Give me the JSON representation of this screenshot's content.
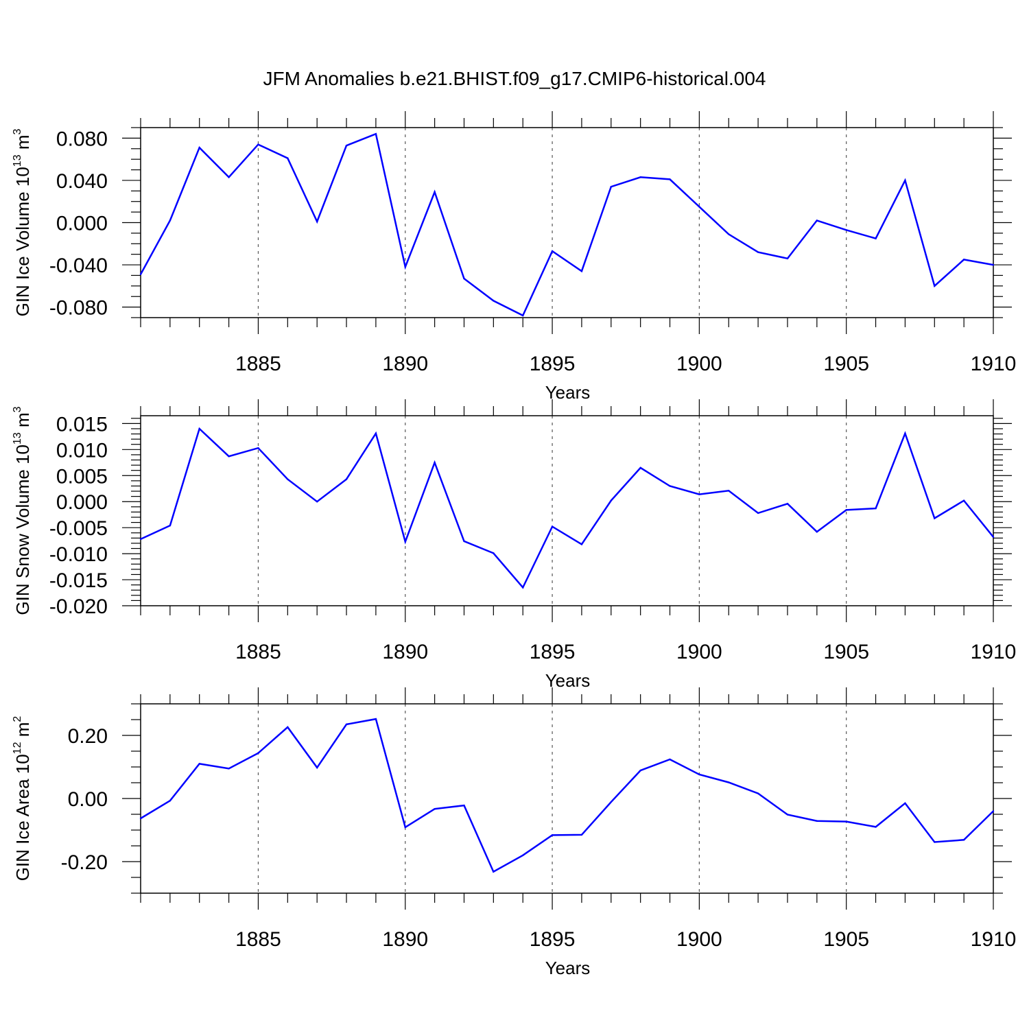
{
  "title": "JFM Anomalies b.e21.BHIST.f09_g17.CMIP6-historical.004",
  "line_color": "#0000ff",
  "chart_data": [
    {
      "type": "line",
      "xlabel": "Years",
      "ylabel": {
        "main": "GIN Ice Volume 10",
        "exp": "13",
        "unit": " m",
        "unit_exp": "3"
      },
      "xlim": [
        1881,
        1910
      ],
      "ylim": [
        -0.09,
        0.09
      ],
      "x_ticks": [
        1885,
        1890,
        1895,
        1900,
        1905,
        1910
      ],
      "x_tick_labels": [
        "1885",
        "1890",
        "1895",
        "1900",
        "1905",
        "1910"
      ],
      "y_ticks": [
        -0.08,
        -0.04,
        0.0,
        0.04,
        0.08
      ],
      "y_tick_labels": [
        "-0.080",
        "-0.040",
        "0.000",
        "0.040",
        "0.080"
      ],
      "y_minor_step": 0.01,
      "grid": "vertical dashed at major x ticks",
      "series": [
        {
          "name": "GIN Ice Volume",
          "x": [
            1881,
            1882,
            1883,
            1884,
            1885,
            1886,
            1887,
            1888,
            1889,
            1890,
            1891,
            1892,
            1893,
            1894,
            1895,
            1896,
            1897,
            1898,
            1899,
            1900,
            1901,
            1902,
            1903,
            1904,
            1905,
            1906,
            1907,
            1908,
            1909,
            1910
          ],
          "values": [
            -0.049,
            0.002,
            0.071,
            0.043,
            0.074,
            0.061,
            0.001,
            0.073,
            0.084,
            -0.042,
            0.029,
            -0.053,
            -0.074,
            -0.088,
            -0.027,
            -0.046,
            0.034,
            0.043,
            0.041,
            0.015,
            -0.011,
            -0.028,
            -0.034,
            0.002,
            -0.007,
            -0.015,
            0.04,
            -0.06,
            -0.035,
            -0.04
          ]
        }
      ]
    },
    {
      "type": "line",
      "xlabel": "Years",
      "ylabel": {
        "main": "GIN Snow Volume 10",
        "exp": "13",
        "unit": " m",
        "unit_exp": "3"
      },
      "xlim": [
        1881,
        1910
      ],
      "ylim": [
        -0.02,
        0.0165
      ],
      "x_ticks": [
        1885,
        1890,
        1895,
        1900,
        1905,
        1910
      ],
      "x_tick_labels": [
        "1885",
        "1890",
        "1895",
        "1900",
        "1905",
        "1910"
      ],
      "y_ticks": [
        -0.02,
        -0.015,
        -0.01,
        -0.005,
        0.0,
        0.005,
        0.01,
        0.015
      ],
      "y_tick_labels": [
        "-0.020",
        "-0.015",
        "-0.010",
        "-0.005",
        "0.000",
        "0.005",
        "0.010",
        "0.015"
      ],
      "y_minor_step": 0.001,
      "grid": "vertical dashed at major x ticks",
      "series": [
        {
          "name": "GIN Snow Volume",
          "x": [
            1881,
            1882,
            1883,
            1884,
            1885,
            1886,
            1887,
            1888,
            1889,
            1890,
            1891,
            1892,
            1893,
            1894,
            1895,
            1896,
            1897,
            1898,
            1899,
            1900,
            1901,
            1902,
            1903,
            1904,
            1905,
            1906,
            1907,
            1908,
            1909,
            1910
          ],
          "values": [
            -0.0072,
            -0.0046,
            0.014,
            0.0087,
            0.0103,
            0.0043,
            0.0,
            0.0043,
            0.0131,
            -0.0077,
            0.0075,
            -0.0076,
            -0.0099,
            -0.0165,
            -0.0048,
            -0.0082,
            0.0002,
            0.0065,
            0.003,
            0.0014,
            0.0021,
            -0.0022,
            -0.0004,
            -0.0058,
            -0.0016,
            -0.0013,
            0.0131,
            -0.0032,
            0.0002,
            -0.0068
          ]
        }
      ]
    },
    {
      "type": "line",
      "xlabel": "Years",
      "ylabel": {
        "main": "GIN Ice Area 10",
        "exp": "12",
        "unit": " m",
        "unit_exp": "2"
      },
      "xlim": [
        1881,
        1910
      ],
      "ylim": [
        -0.3,
        0.3
      ],
      "x_ticks": [
        1885,
        1890,
        1895,
        1900,
        1905,
        1910
      ],
      "x_tick_labels": [
        "1885",
        "1890",
        "1895",
        "1900",
        "1905",
        "1910"
      ],
      "y_ticks": [
        -0.2,
        0.0,
        0.2
      ],
      "y_tick_labels": [
        "-0.20",
        "0.00",
        "0.20"
      ],
      "y_minor_step": 0.05,
      "grid": "vertical dashed at major x ticks",
      "series": [
        {
          "name": "GIN Ice Area",
          "x": [
            1881,
            1882,
            1883,
            1884,
            1885,
            1886,
            1887,
            1888,
            1889,
            1890,
            1891,
            1892,
            1893,
            1894,
            1895,
            1896,
            1897,
            1898,
            1899,
            1900,
            1901,
            1902,
            1903,
            1904,
            1905,
            1906,
            1907,
            1908,
            1909,
            1910
          ],
          "values": [
            -0.063,
            -0.007,
            0.11,
            0.095,
            0.144,
            0.226,
            0.098,
            0.235,
            0.252,
            -0.091,
            -0.033,
            -0.022,
            -0.232,
            -0.18,
            -0.116,
            -0.115,
            -0.011,
            0.089,
            0.124,
            0.076,
            0.051,
            0.016,
            -0.051,
            -0.071,
            -0.073,
            -0.09,
            -0.015,
            -0.138,
            -0.131,
            -0.04
          ]
        }
      ]
    }
  ]
}
